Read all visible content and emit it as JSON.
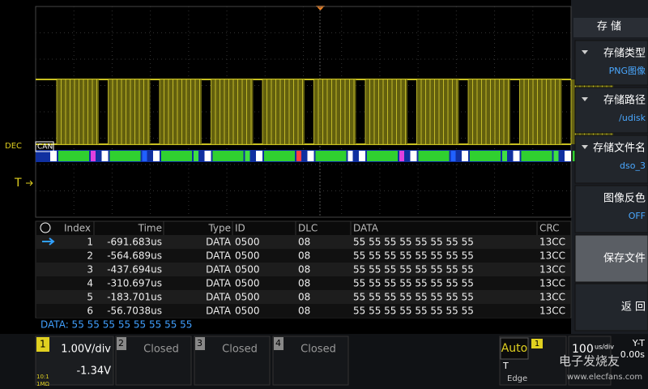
{
  "screen": {
    "markers": {
      "dec": "DEC",
      "trigger": "T",
      "bus": "CAN"
    },
    "table": {
      "headers": [
        "Index",
        "Time",
        "Type",
        "ID",
        "DLC",
        "DATA",
        "CRC"
      ],
      "rows": [
        [
          "1",
          "-691.683us",
          "DATA",
          "0500",
          "08",
          "55 55 55 55 55 55 55 55",
          "13CC"
        ],
        [
          "2",
          "-564.689us",
          "DATA",
          "0500",
          "08",
          "55 55 55 55 55 55 55 55",
          "13CC"
        ],
        [
          "3",
          "-437.694us",
          "DATA",
          "0500",
          "08",
          "55 55 55 55 55 55 55 55",
          "13CC"
        ],
        [
          "4",
          "-310.697us",
          "DATA",
          "0500",
          "08",
          "55 55 55 55 55 55 55 55",
          "13CC"
        ],
        [
          "5",
          "-183.701us",
          "DATA",
          "0500",
          "08",
          "55 55 55 55 55 55 55 55",
          "13CC"
        ],
        [
          "6",
          "-56.7038us",
          "DATA",
          "0500",
          "08",
          "55 55 55 55 55 55 55 55",
          "13CC"
        ]
      ]
    },
    "data_line": "DATA: 55 55 55 55 55 55 55 55",
    "channels": [
      {
        "number": "1",
        "scale": "1.00V/div",
        "offset": "-1.34V",
        "probe": "10:1",
        "impedance": "1MΩ"
      },
      {
        "number": "2",
        "status": "Closed"
      },
      {
        "number": "3",
        "status": "Closed"
      },
      {
        "number": "4",
        "status": "Closed"
      }
    ],
    "trigger": {
      "mode": "Auto",
      "source": "1",
      "label": "T",
      "type": "Edge",
      "timebase": "100",
      "timebase_unit": "us/div",
      "display": "Y-T",
      "delay": "0.00s"
    },
    "menu": {
      "title": "存 储",
      "items": [
        {
          "label": "存储类型",
          "value": "PNG图像"
        },
        {
          "label": "存储路径",
          "value": "/udisk"
        },
        {
          "label": "存储文件名",
          "value": "dso_3"
        },
        {
          "label": "图像反色",
          "value": "OFF"
        },
        {
          "label": "保存文件"
        },
        {
          "label": "返 回"
        }
      ]
    },
    "watermark": {
      "brand": "电子发烧友",
      "url": "www.elecfans.com"
    }
  }
}
